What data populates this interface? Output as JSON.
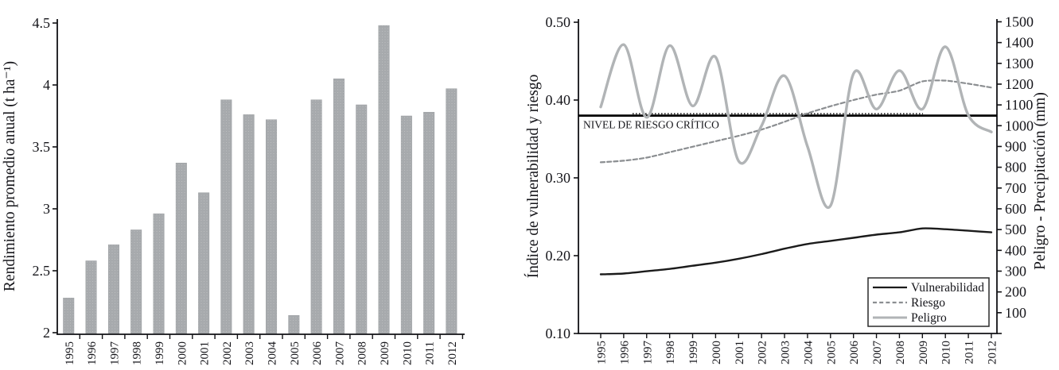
{
  "figure_title": "",
  "chart_data": [
    {
      "id": "yield-bar-chart",
      "type": "bar",
      "title": "",
      "xlabel": "",
      "ylabel": "Rendimiento promedio anual (t ha⁻¹)",
      "categories": [
        "1995",
        "1996",
        "1997",
        "1998",
        "1999",
        "2000",
        "2001",
        "2002",
        "2003",
        "2004",
        "2005",
        "2006",
        "2007",
        "2008",
        "2009",
        "2010",
        "2011",
        "2012"
      ],
      "values": [
        2.28,
        2.58,
        2.71,
        2.83,
        2.96,
        3.37,
        3.13,
        3.88,
        3.76,
        3.72,
        2.14,
        3.88,
        4.05,
        3.84,
        4.48,
        3.75,
        3.78,
        3.97
      ],
      "ylim": [
        2,
        4.5
      ],
      "yticks": [
        2,
        2.5,
        3,
        3.5,
        4,
        4.5
      ],
      "ytick_labels": [
        "2",
        "2.5",
        "3",
        "3.5",
        "4",
        "4.5"
      ],
      "grid": false,
      "legend": null,
      "bar_color": "#a7aaad",
      "bar_dot_color": "#c1c3c5",
      "axis_color": "#111114"
    },
    {
      "id": "vulnerability-risk-chart",
      "type": "line",
      "title": "",
      "xlabel": "",
      "ylabel_left": "Índice de vulnerabilidad y riesgo",
      "ylabel_right": "Peligro - Precipitación (mm)",
      "categories": [
        "1995",
        "1996",
        "1997",
        "1998",
        "1999",
        "2000",
        "2001",
        "2002",
        "2003",
        "2004",
        "2005",
        "2006",
        "2007",
        "2008",
        "2009",
        "2010",
        "2011",
        "2012"
      ],
      "ylim_left": [
        0.1,
        0.5
      ],
      "yticks_left": [
        0.1,
        0.2,
        0.3,
        0.4,
        0.5
      ],
      "ytick_labels_left": [
        "0.10",
        "0.20",
        "0.30",
        "0.40",
        "0.50"
      ],
      "ylim_right": [
        0,
        1500
      ],
      "yticks_right": [
        100,
        200,
        300,
        400,
        500,
        600,
        700,
        800,
        900,
        1000,
        1100,
        1200,
        1300,
        1400,
        1500
      ],
      "ytick_labels_right": [
        "100",
        "200",
        "300",
        "400",
        "500",
        "600",
        "700",
        "800",
        "900",
        "1000",
        "1100",
        "1200",
        "1300",
        "1400",
        "1500"
      ],
      "grid": false,
      "critical_line": {
        "label": "NIVEL DE RIESGO CRÍTICO",
        "value_left_axis": 0.38,
        "color": "#000000",
        "style": "solid-with-dotted-overlay"
      },
      "legend": {
        "position": "bottom-right",
        "entries": [
          {
            "name": "Vulnerabilidad",
            "style": "solid",
            "color": "#1b1b1b"
          },
          {
            "name": "Riesgo",
            "style": "dashed",
            "color": "#8b8e91"
          },
          {
            "name": "Peligro",
            "style": "solid",
            "color": "#b1b4b6"
          }
        ]
      },
      "series": [
        {
          "name": "Vulnerabilidad",
          "axis": "left",
          "style": "solid",
          "color": "#1b1b1b",
          "values": [
            0.176,
            0.177,
            0.18,
            0.183,
            0.187,
            0.191,
            0.196,
            0.202,
            0.209,
            0.215,
            0.219,
            0.223,
            0.227,
            0.23,
            0.235,
            0.234,
            0.232,
            0.23
          ]
        },
        {
          "name": "Riesgo",
          "axis": "left",
          "style": "dashed",
          "color": "#8b8e91",
          "values": [
            0.32,
            0.322,
            0.326,
            0.333,
            0.34,
            0.347,
            0.354,
            0.362,
            0.372,
            0.383,
            0.392,
            0.4,
            0.407,
            0.412,
            0.424,
            0.425,
            0.421,
            0.416
          ]
        },
        {
          "name": "Peligro",
          "axis": "right",
          "style": "solid",
          "color": "#b1b4b6",
          "values": [
            1090,
            1390,
            1040,
            1385,
            1095,
            1330,
            830,
            1000,
            1240,
            900,
            615,
            1250,
            1080,
            1265,
            1080,
            1380,
            1050,
            970
          ]
        }
      ]
    }
  ]
}
